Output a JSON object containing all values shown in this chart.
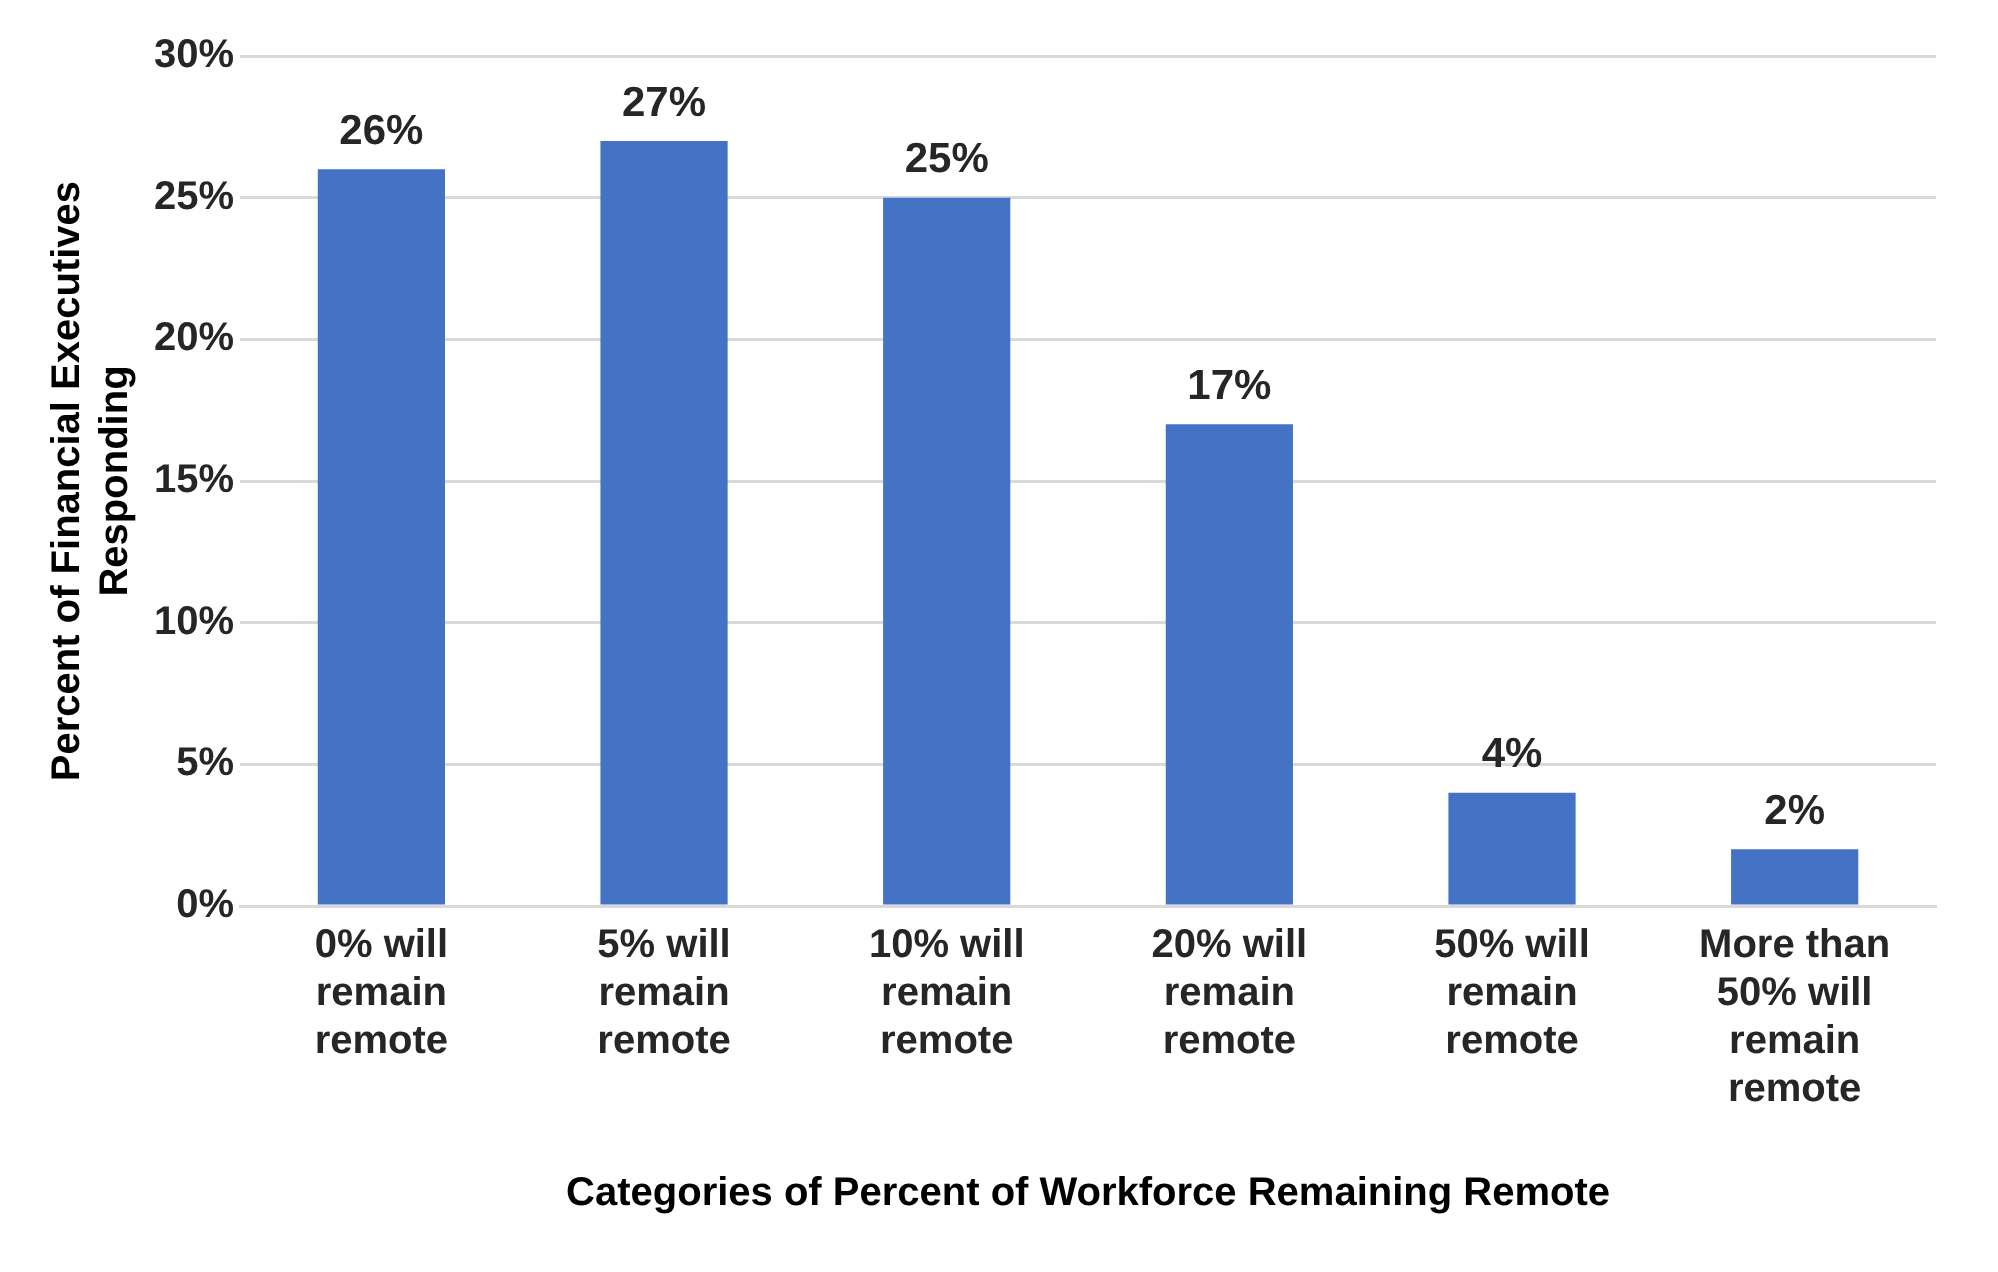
{
  "chart_data": {
    "type": "bar",
    "xlabel": "Categories of Percent of Workforce Remaining Remote",
    "ylabel": "Percent of Financial Executives Responding",
    "categories": [
      "0% will remain remote",
      "5% will remain remote",
      "10% will remain remote",
      "20% will remain remote",
      "50% will remain remote",
      "More than 50% will remain remote"
    ],
    "values": [
      26,
      27,
      25,
      17,
      4,
      2
    ],
    "value_labels": [
      "26%",
      "27%",
      "25%",
      "17%",
      "4%",
      "2%"
    ],
    "color": "#4472c4",
    "ylim": [
      0,
      30
    ],
    "yticks": [
      {
        "value": 0,
        "label": "0%"
      },
      {
        "value": 5,
        "label": "5%"
      },
      {
        "value": 10,
        "label": "10%"
      },
      {
        "value": 15,
        "label": "15%"
      },
      {
        "value": 20,
        "label": "20%"
      },
      {
        "value": 25,
        "label": "25%"
      },
      {
        "value": 30,
        "label": "30%"
      }
    ],
    "grid": "y",
    "legend": false
  }
}
